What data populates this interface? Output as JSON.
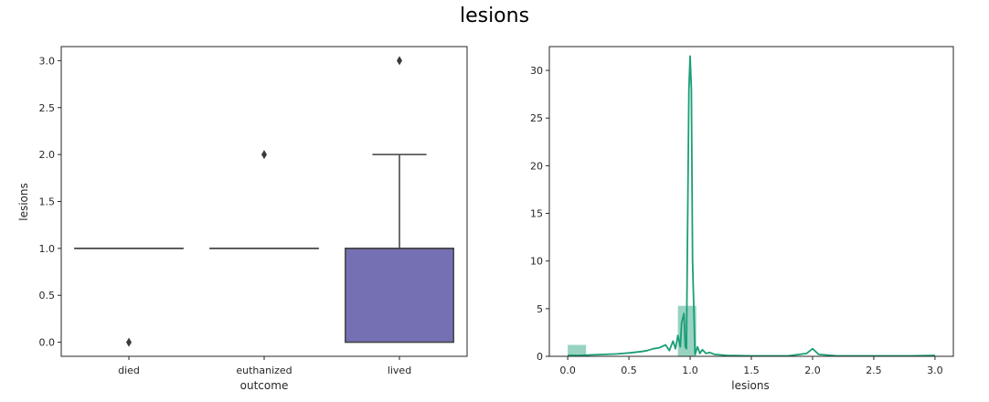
{
  "figure": {
    "suptitle": "lesions"
  },
  "chart_data": [
    {
      "type": "box",
      "xlabel": "outcome",
      "ylabel": "lesions",
      "ylim": [
        -0.15,
        3.15
      ],
      "yticks": [
        0.0,
        0.5,
        1.0,
        1.5,
        2.0,
        2.5,
        3.0
      ],
      "ytick_labels": [
        "0.0",
        "0.5",
        "1.0",
        "1.5",
        "2.0",
        "2.5",
        "3.0"
      ],
      "categories": [
        "died",
        "euthanized",
        "lived"
      ],
      "boxes": [
        {
          "category": "died",
          "q1": 1,
          "median": 1,
          "q3": 1,
          "whisker_low": 1,
          "whisker_high": 1,
          "outliers": [
            0
          ],
          "color": "#1b9e77"
        },
        {
          "category": "euthanized",
          "q1": 1,
          "median": 1,
          "q3": 1,
          "whisker_low": 1,
          "whisker_high": 1,
          "outliers": [
            2
          ],
          "color": "#d95f02"
        },
        {
          "category": "lived",
          "q1": 0,
          "median": 1,
          "q3": 1,
          "whisker_low": 0,
          "whisker_high": 2,
          "outliers": [
            3
          ],
          "color": "#7570b3"
        }
      ],
      "line_color": "#404040"
    },
    {
      "type": "histogram_kde",
      "xlabel": "lesions",
      "ylabel": "",
      "xlim": [
        -0.15,
        3.15
      ],
      "ylim": [
        0,
        32.5
      ],
      "xticks": [
        0.0,
        0.5,
        1.0,
        1.5,
        2.0,
        2.5,
        3.0
      ],
      "xtick_labels": [
        "0.0",
        "0.5",
        "1.0",
        "1.5",
        "2.0",
        "2.5",
        "3.0"
      ],
      "yticks": [
        0,
        5,
        10,
        15,
        20,
        25,
        30
      ],
      "ytick_labels": [
        "0",
        "5",
        "10",
        "15",
        "20",
        "25",
        "30"
      ],
      "bins": [
        {
          "x0": 0.0,
          "x1": 0.15,
          "height": 1.2
        },
        {
          "x0": 0.9,
          "x1": 1.05,
          "height": 5.3
        }
      ],
      "kde": {
        "x": [
          0.0,
          0.1,
          0.2,
          0.3,
          0.4,
          0.5,
          0.6,
          0.65,
          0.7,
          0.75,
          0.8,
          0.83,
          0.86,
          0.88,
          0.9,
          0.92,
          0.93,
          0.95,
          0.96,
          0.97,
          0.98,
          0.99,
          1.0,
          1.01,
          1.02,
          1.04,
          1.06,
          1.08,
          1.1,
          1.13,
          1.16,
          1.2,
          1.3,
          1.5,
          1.8,
          1.95,
          2.0,
          2.05,
          2.2,
          2.5,
          2.8,
          3.0
        ],
        "y": [
          0.1,
          0.1,
          0.15,
          0.2,
          0.25,
          0.35,
          0.5,
          0.6,
          0.8,
          0.9,
          1.2,
          0.6,
          1.6,
          0.8,
          2.2,
          1.0,
          3.5,
          4.5,
          1.0,
          0.8,
          15.0,
          28.0,
          31.5,
          28.0,
          10.0,
          0.2,
          1.0,
          0.3,
          0.7,
          0.3,
          0.4,
          0.2,
          0.1,
          0.05,
          0.05,
          0.3,
          0.8,
          0.2,
          0.05,
          0.05,
          0.05,
          0.1
        ],
        "color": "#1b9e77"
      },
      "bar_color": "#1b9e77"
    }
  ]
}
